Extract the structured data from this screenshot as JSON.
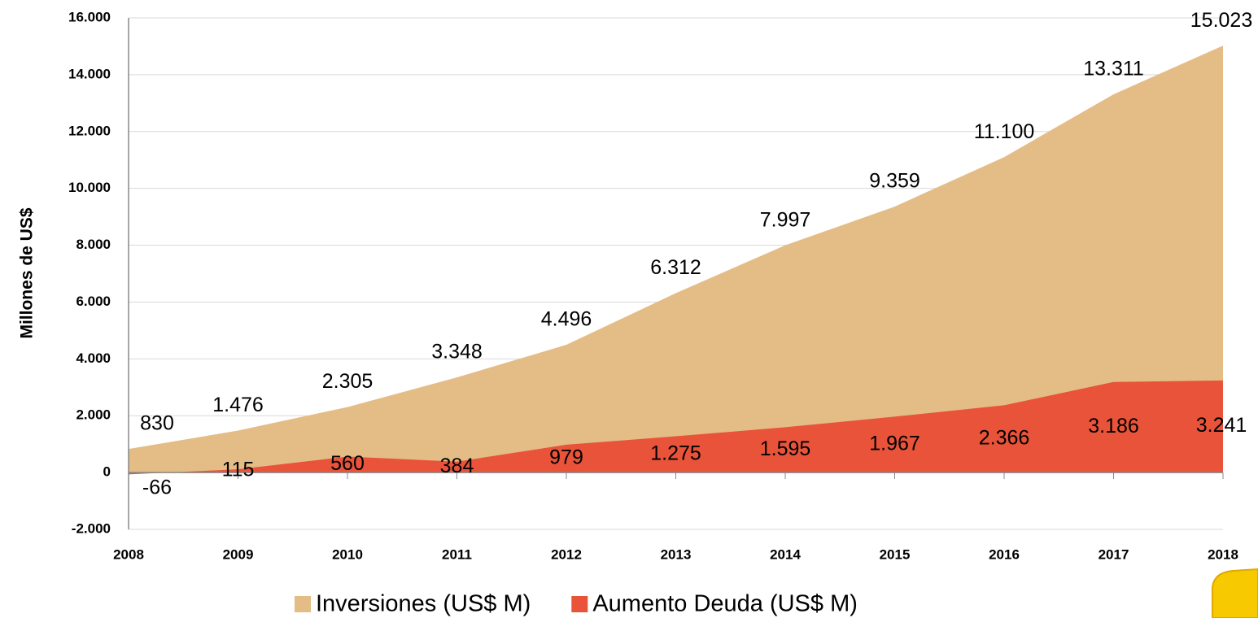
{
  "chart_data": {
    "type": "area",
    "ylabel": "Millones de US$",
    "categories": [
      "2008",
      "2009",
      "2010",
      "2011",
      "2012",
      "2013",
      "2014",
      "2015",
      "2016",
      "2017",
      "2018"
    ],
    "series": [
      {
        "name": "Inversiones (US$ M)",
        "color": "#e4bc86",
        "values": [
          830,
          1476,
          2305,
          3348,
          4496,
          6312,
          7997,
          9359,
          11100,
          13311,
          15023
        ],
        "value_labels": [
          "830",
          "1.476",
          "2.305",
          "3.348",
          "4.496",
          "6.312",
          "7.997",
          "9.359",
          "11.100",
          "13.311",
          "15.023"
        ]
      },
      {
        "name": "Aumento Deuda (US$ M)",
        "color": "#e8533a",
        "values": [
          -66,
          115,
          560,
          384,
          979,
          1275,
          1595,
          1967,
          2366,
          3186,
          3241
        ],
        "value_labels": [
          "-66",
          "115",
          "560",
          "384",
          "979",
          "1.275",
          "1.595",
          "1.967",
          "2.366",
          "3.186",
          "3.241"
        ]
      }
    ],
    "ylim": [
      -2000,
      16000
    ],
    "yticks": [
      {
        "value": -2000,
        "label": "-2.000"
      },
      0,
      {
        "value": 2000,
        "label": "2.000"
      },
      {
        "value": 4000,
        "label": "4.000"
      },
      {
        "value": 6000,
        "label": "6.000"
      },
      {
        "value": 8000,
        "label": "8.000"
      },
      {
        "value": 10000,
        "label": "10.000"
      },
      {
        "value": 12000,
        "label": "12.000"
      },
      {
        "value": 14000,
        "label": "14.000"
      },
      {
        "value": 16000,
        "label": "16.000"
      }
    ],
    "grid": true,
    "legend": "bottom"
  }
}
